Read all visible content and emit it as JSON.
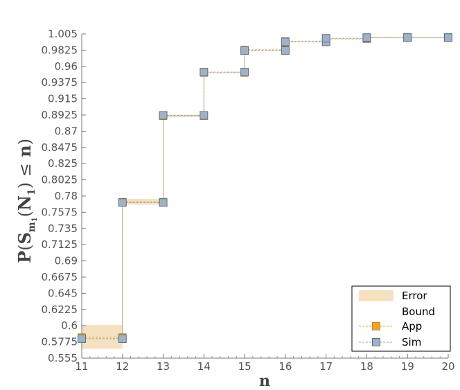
{
  "chart_data": {
    "type": "line",
    "title": "",
    "xlabel": "n",
    "ylabel_parts": {
      "p": "P",
      "s": "S",
      "m": "m",
      "one": "1",
      "n1": "N",
      "le": "≤",
      "n": "n"
    },
    "xlim": [
      11,
      20
    ],
    "ylim": [
      0.555,
      1.005
    ],
    "x_ticks": [
      "11",
      "12",
      "13",
      "14",
      "15",
      "16",
      "17",
      "18",
      "19",
      "20"
    ],
    "y_ticks": [
      "0.555",
      "0.5775",
      "0.6",
      "0.6225",
      "0.645",
      "0.6675",
      "0.69",
      "0.7125",
      "0.735",
      "0.7575",
      "0.78",
      "0.8025",
      "0.825",
      "0.8475",
      "0.87",
      "0.8925",
      "0.915",
      "0.9375",
      "0.96",
      "0.9825",
      "1.005"
    ],
    "x": [
      11,
      12,
      13,
      14,
      15,
      16,
      17,
      18,
      19,
      20
    ],
    "series": [
      {
        "name": "App",
        "values": [
          0.584,
          0.772,
          0.891,
          0.951,
          0.983,
          0.995,
          0.998,
          1.0,
          1.0,
          1.0
        ]
      },
      {
        "name": "Sim",
        "values": [
          0.582,
          0.771,
          0.892,
          0.952,
          0.982,
          0.994,
          0.999,
          1.0,
          1.0,
          1.0
        ]
      }
    ],
    "error_band": {
      "name": "Error Bound",
      "segments": [
        {
          "x0": 11,
          "x1": 12,
          "lo": 0.568,
          "hi": 0.601
        },
        {
          "x0": 12,
          "x1": 13,
          "lo": 0.768,
          "hi": 0.776
        },
        {
          "x0": 13,
          "x1": 14,
          "lo": 0.89,
          "hi": 0.893
        }
      ]
    },
    "legend": {
      "placement": "bottom-right",
      "items": [
        {
          "label_1": "Error",
          "label_2": "Bound"
        },
        {
          "label": "App"
        },
        {
          "label": "Sim"
        }
      ]
    },
    "colors": {
      "band": "#f5e1bf",
      "app": "#e8a33c",
      "sim_fill": "#9fb3c8",
      "sim_stroke": "#5e6d7a",
      "axis": "#777777"
    }
  }
}
